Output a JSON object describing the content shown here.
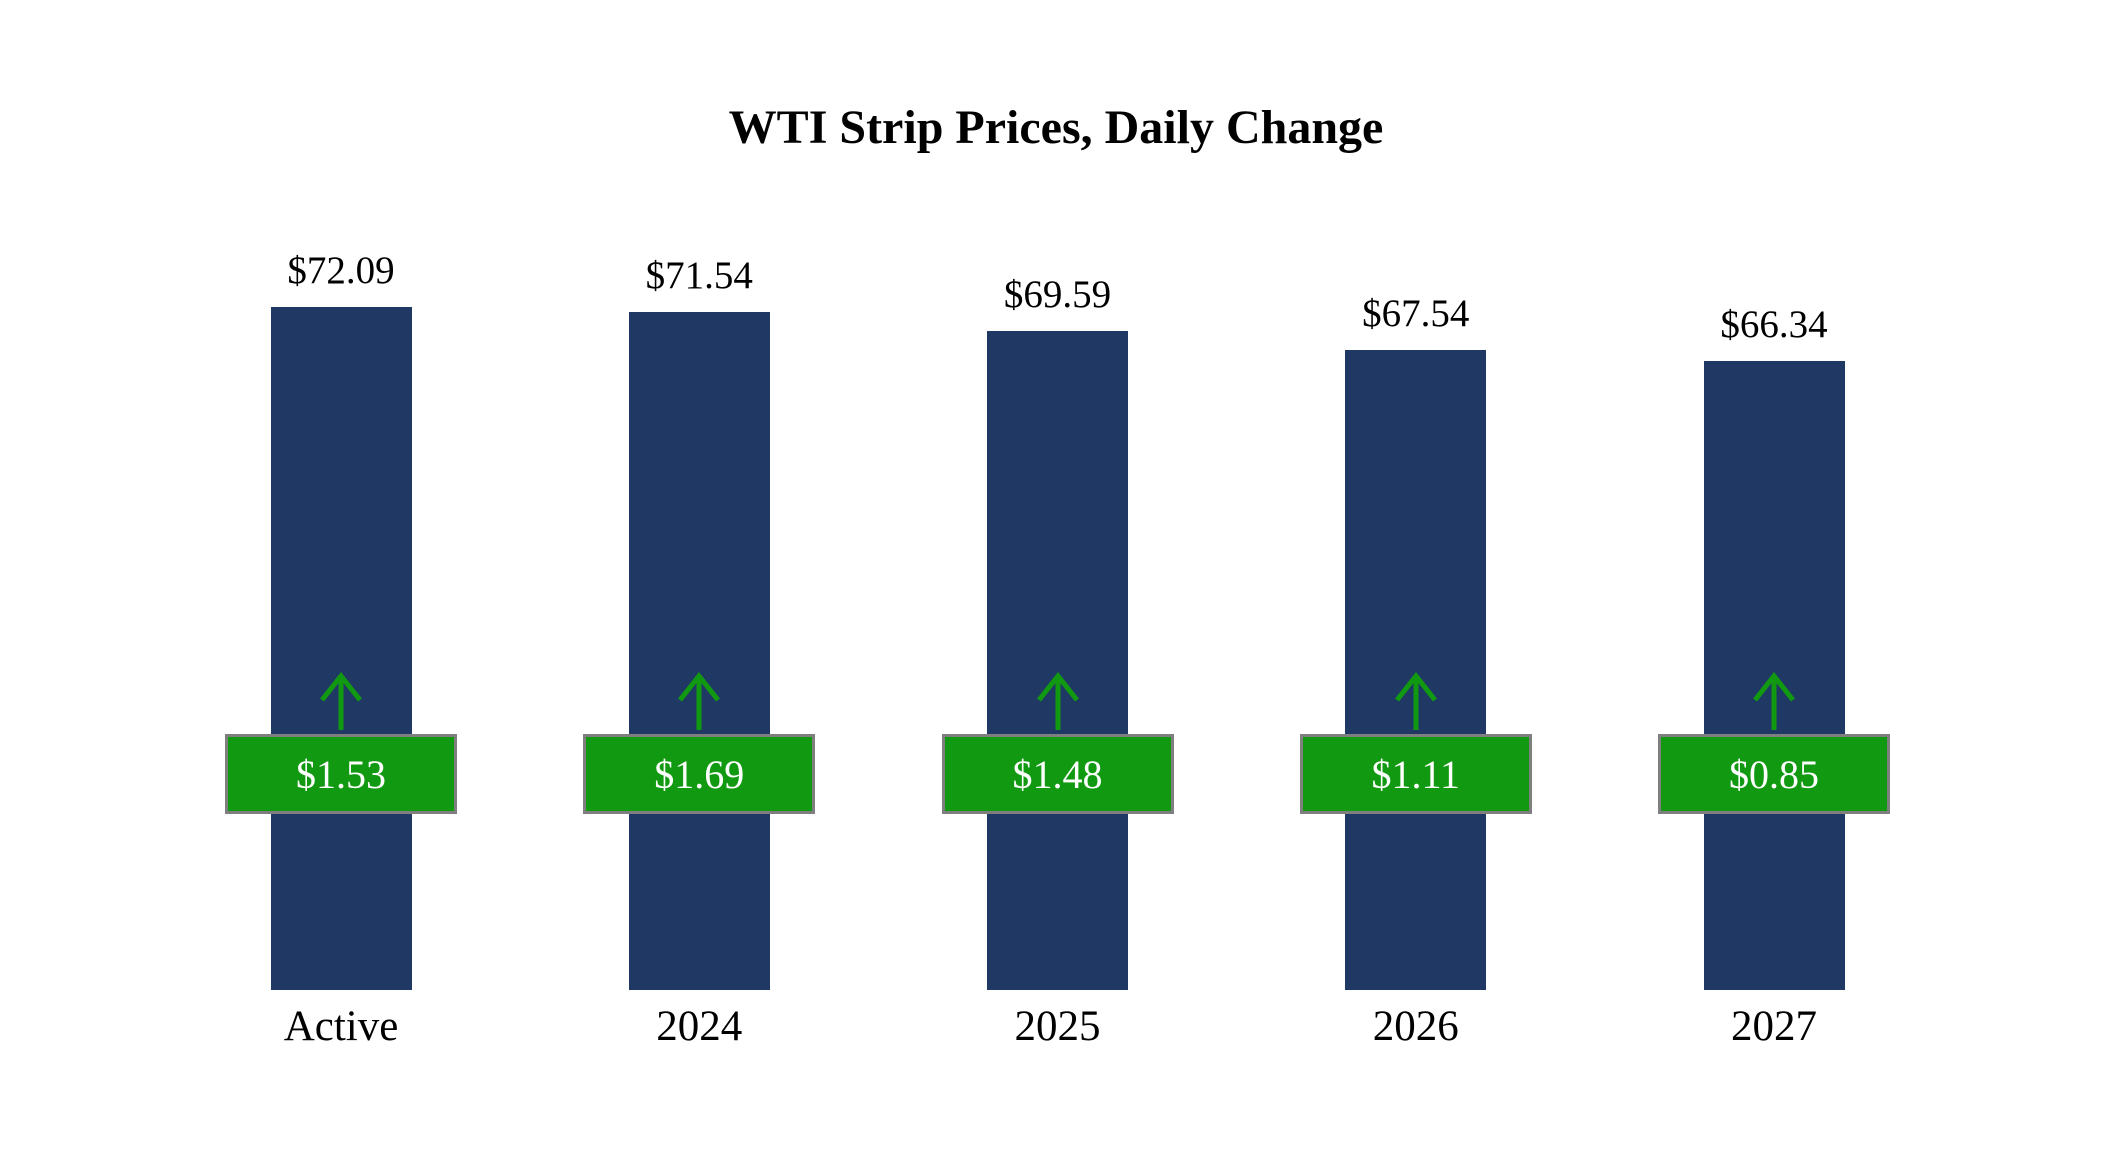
{
  "title": "WTI Strip Prices, Daily Change",
  "colors": {
    "bar": "#1F3864",
    "badge": "#119A11",
    "badge_border": "#7F7F7F",
    "arrow": "#119A11",
    "badge_text": "#FFFFFF",
    "text": "#000000",
    "background": "#FFFFFF"
  },
  "chart_data": {
    "type": "bar",
    "title": "WTI Strip Prices, Daily Change",
    "categories": [
      "Active",
      "2024",
      "2025",
      "2026",
      "2027"
    ],
    "series": [
      {
        "name": "Strip Price",
        "values": [
          72.09,
          71.54,
          69.59,
          67.54,
          66.34
        ],
        "labels": [
          "$72.09",
          "$71.54",
          "$69.59",
          "$67.54",
          "$66.34"
        ]
      },
      {
        "name": "Daily Change",
        "values": [
          1.53,
          1.69,
          1.48,
          1.11,
          0.85
        ],
        "labels": [
          "$1.53",
          "$1.69",
          "$1.48",
          "$1.11",
          "$0.85"
        ]
      }
    ],
    "ylim": [
      0,
      75
    ],
    "grid": false,
    "legend": "none",
    "xlabel": "",
    "ylabel": ""
  }
}
